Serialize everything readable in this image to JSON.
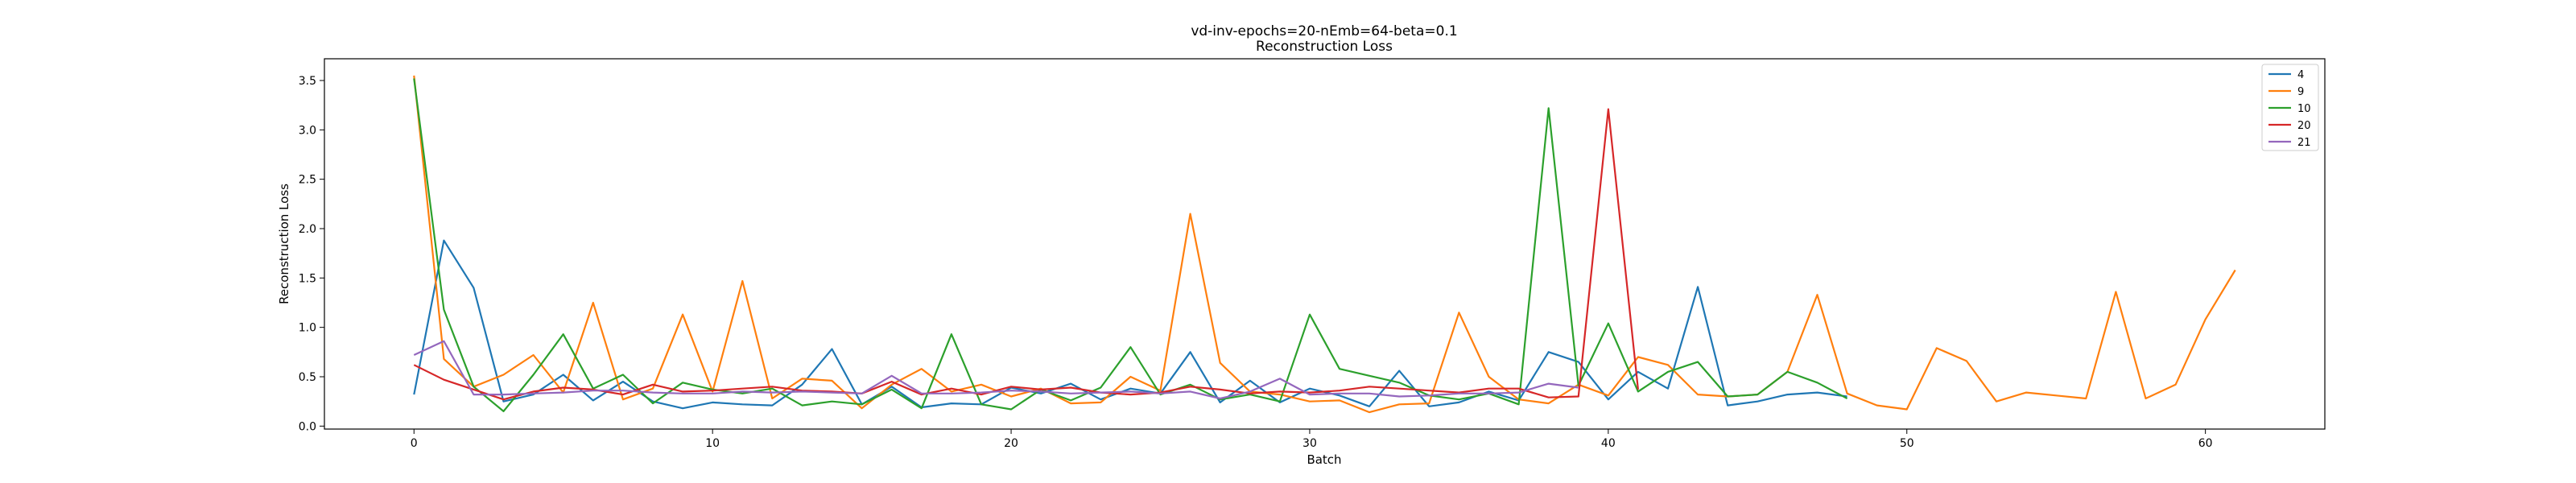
{
  "chart_data": {
    "type": "line",
    "title": "vd-inv-epochs=20-nEmb=64-beta=0.1",
    "subtitle": "Reconstruction Loss",
    "xlabel": "Batch",
    "ylabel": "Reconstruction Loss",
    "xlim": [
      -3,
      64
    ],
    "ylim": [
      -0.03,
      3.72
    ],
    "xticks": [
      0,
      10,
      20,
      30,
      40,
      50,
      60
    ],
    "yticks": [
      0.0,
      0.5,
      1.0,
      1.5,
      2.0,
      2.5,
      3.0,
      3.5
    ],
    "xtick_labels": [
      "0",
      "10",
      "20",
      "30",
      "40",
      "50",
      "60"
    ],
    "ytick_labels": [
      "0.0",
      "0.5",
      "1.0",
      "1.5",
      "2.0",
      "2.5",
      "3.0",
      "3.5"
    ],
    "grid": false,
    "legend_position": "top-right",
    "series": [
      {
        "name": "4",
        "color": "#1f77b4",
        "values": [
          0.32,
          1.88,
          1.4,
          0.25,
          0.32,
          0.52,
          0.26,
          0.45,
          0.25,
          0.18,
          0.24,
          0.22,
          0.21,
          0.42,
          0.78,
          0.22,
          0.4,
          0.19,
          0.23,
          0.22,
          0.39,
          0.33,
          0.43,
          0.27,
          0.38,
          0.33,
          0.75,
          0.24,
          0.46,
          0.24,
          0.38,
          0.31,
          0.2,
          0.56,
          0.2,
          0.24,
          0.35,
          0.26,
          0.75,
          0.65,
          0.27,
          0.55,
          0.38,
          1.41,
          0.21,
          0.25,
          0.32,
          0.34,
          0.3
        ]
      },
      {
        "name": "9",
        "color": "#ff7f0e",
        "values": [
          3.55,
          0.68,
          0.4,
          0.52,
          0.72,
          0.34,
          1.25,
          0.27,
          0.38,
          1.13,
          0.35,
          1.47,
          0.28,
          0.48,
          0.46,
          0.18,
          0.42,
          0.58,
          0.35,
          0.42,
          0.3,
          0.38,
          0.23,
          0.24,
          0.5,
          0.36,
          2.15,
          0.64,
          0.35,
          0.32,
          0.25,
          0.26,
          0.14,
          0.22,
          0.23,
          1.15,
          0.5,
          0.27,
          0.23,
          0.42,
          0.31,
          0.7,
          0.62,
          0.32,
          0.3,
          0.32,
          0.55,
          1.33,
          0.33,
          0.21,
          0.17,
          0.79,
          0.66,
          0.25,
          0.34,
          0.31,
          0.28,
          1.36,
          0.28,
          0.42,
          1.08,
          1.58
        ]
      },
      {
        "name": "10",
        "color": "#2ca02c",
        "values": [
          3.52,
          1.18,
          0.4,
          0.15,
          0.52,
          0.93,
          0.38,
          0.52,
          0.23,
          0.44,
          0.37,
          0.33,
          0.38,
          0.21,
          0.25,
          0.22,
          0.37,
          0.18,
          0.93,
          0.22,
          0.17,
          0.37,
          0.26,
          0.39,
          0.8,
          0.32,
          0.42,
          0.27,
          0.32,
          0.25,
          1.13,
          0.58,
          0.51,
          0.44,
          0.31,
          0.27,
          0.33,
          0.22,
          3.22,
          0.41,
          1.04,
          0.35,
          0.55,
          0.65,
          0.3,
          0.32,
          0.55,
          0.44,
          0.28
        ]
      },
      {
        "name": "20",
        "color": "#d62728",
        "values": [
          0.62,
          0.47,
          0.37,
          0.27,
          0.35,
          0.39,
          0.37,
          0.32,
          0.42,
          0.35,
          0.36,
          0.38,
          0.4,
          0.36,
          0.35,
          0.33,
          0.45,
          0.32,
          0.38,
          0.32,
          0.4,
          0.37,
          0.39,
          0.34,
          0.32,
          0.34,
          0.4,
          0.37,
          0.33,
          0.35,
          0.34,
          0.36,
          0.4,
          0.38,
          0.36,
          0.34,
          0.38,
          0.38,
          0.29,
          0.3,
          3.21,
          0.37
        ]
      },
      {
        "name": "21",
        "color": "#9467bd",
        "values": [
          0.72,
          0.86,
          0.32,
          0.32,
          0.33,
          0.34,
          0.36,
          0.36,
          0.34,
          0.33,
          0.33,
          0.35,
          0.34,
          0.35,
          0.34,
          0.33,
          0.51,
          0.33,
          0.33,
          0.34,
          0.36,
          0.35,
          0.33,
          0.34,
          0.35,
          0.33,
          0.35,
          0.28,
          0.35,
          0.48,
          0.32,
          0.33,
          0.33,
          0.3,
          0.31,
          0.33,
          0.33,
          0.34,
          0.43,
          0.39
        ]
      }
    ]
  }
}
